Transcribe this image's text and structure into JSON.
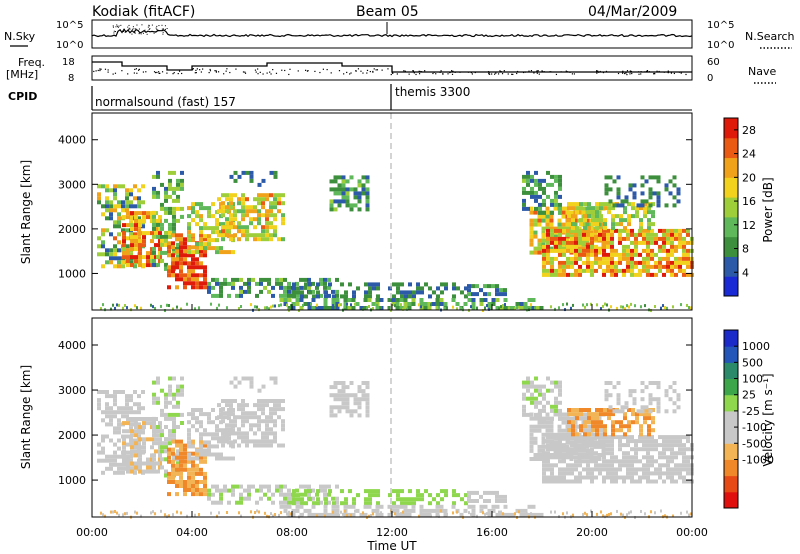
{
  "header": {
    "title": "Kodiak (fitACF)",
    "beam": "Beam 05",
    "date": "04/Mar/2009"
  },
  "top_panels": {
    "nsky_label": "N.Sky",
    "nsky_ticks": [
      "10^5",
      "10^0"
    ],
    "nsearch_label": "N.Search",
    "nsearch_ticks": [
      "10^5",
      "10^0"
    ],
    "freq_label_1": "Freq.",
    "freq_label_2": "[MHz]",
    "freq_ticks": [
      "18",
      "8"
    ],
    "nave_label": "Nave",
    "nave_ticks": [
      "60",
      "0"
    ],
    "cpid_label": "CPID",
    "cpid_segments": [
      {
        "label": "normalsound (fast) 157",
        "start_hour": 0,
        "end_hour": 12
      },
      {
        "label": "themis 3300",
        "start_hour": 12,
        "end_hour": 24
      }
    ]
  },
  "colors": {
    "power_scale": [
      "#1a2bd6",
      "#2d5aa8",
      "#3d8f3d",
      "#5fb85a",
      "#9ecf3a",
      "#f3d21d",
      "#f0a21a",
      "#ea5a12",
      "#e01a0a"
    ],
    "velocity_scale": [
      "#e0100e",
      "#e84a16",
      "#f0882a",
      "#f2b454",
      "#c8c8c8",
      "#c8c8c8",
      "#8fd84e",
      "#3ea64a",
      "#2a8a6a",
      "#2356b8",
      "#1a2bc9"
    ],
    "scatter_grey": "#c8c8c8"
  },
  "chart_data": [
    {
      "type": "heatmap",
      "name": "power",
      "ylabel": "Slant Range [km]",
      "xlim": [
        0,
        24
      ],
      "ylim": [
        180,
        4600
      ],
      "yticks": [
        "4000",
        "3000",
        "2000",
        "1000"
      ],
      "colorbar": {
        "label": "Power [dB]",
        "range": [
          0,
          30
        ],
        "ticks": [
          "28",
          "24",
          "20",
          "16",
          "12",
          "8",
          "4"
        ]
      }
    },
    {
      "type": "heatmap",
      "name": "velocity",
      "ylabel": "Slant Range [km]",
      "xlabel": "Time UT",
      "xlim": [
        0,
        24
      ],
      "ylim": [
        180,
        4600
      ],
      "xticks": [
        "00:00",
        "04:00",
        "08:00",
        "12:00",
        "16:00",
        "20:00",
        "00:00"
      ],
      "yticks": [
        "4000",
        "3000",
        "2000",
        "1000"
      ],
      "colorbar": {
        "label": "Velocity [m s⁻¹]",
        "ticks": [
          "1000",
          "500",
          "100",
          "25",
          "-25",
          "-100",
          "-500",
          "-1000"
        ]
      }
    }
  ]
}
